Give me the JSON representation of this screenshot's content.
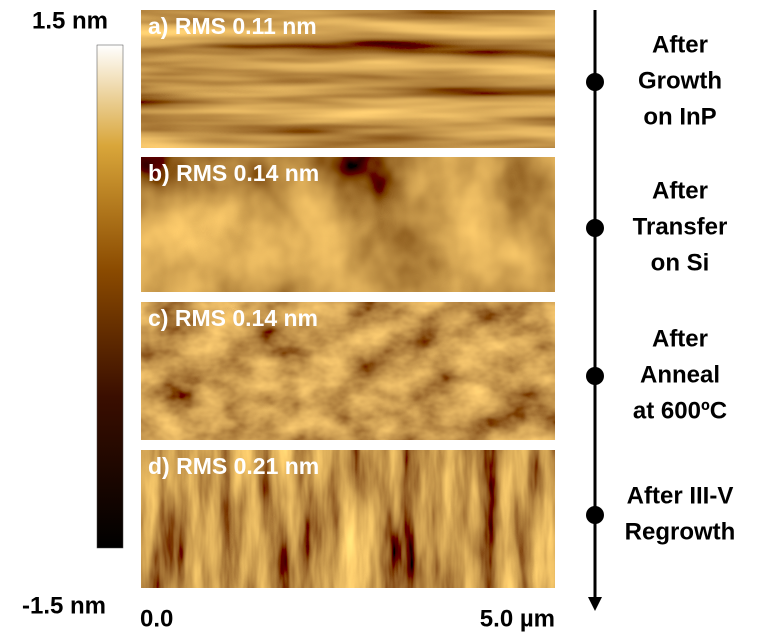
{
  "colorbar": {
    "max_label": "1.5 nm",
    "min_label": "-1.5 nm"
  },
  "panels": [
    {
      "label": "a) RMS 0.11 nm"
    },
    {
      "label": "b) RMS 0.14 nm"
    },
    {
      "label": "c) RMS 0.14 nm"
    },
    {
      "label": "d) RMS 0.21 nm"
    }
  ],
  "scale": {
    "start": "0.0",
    "end": "5.0 µm"
  },
  "timeline": [
    {
      "lines": [
        "After",
        "Growth",
        "on InP"
      ]
    },
    {
      "lines": [
        "After",
        "Transfer",
        "on Si"
      ]
    },
    {
      "lines": [
        "After",
        "Anneal",
        "at 600ºC"
      ]
    },
    {
      "lines": [
        "After III-V",
        "Regrowth"
      ]
    }
  ]
}
